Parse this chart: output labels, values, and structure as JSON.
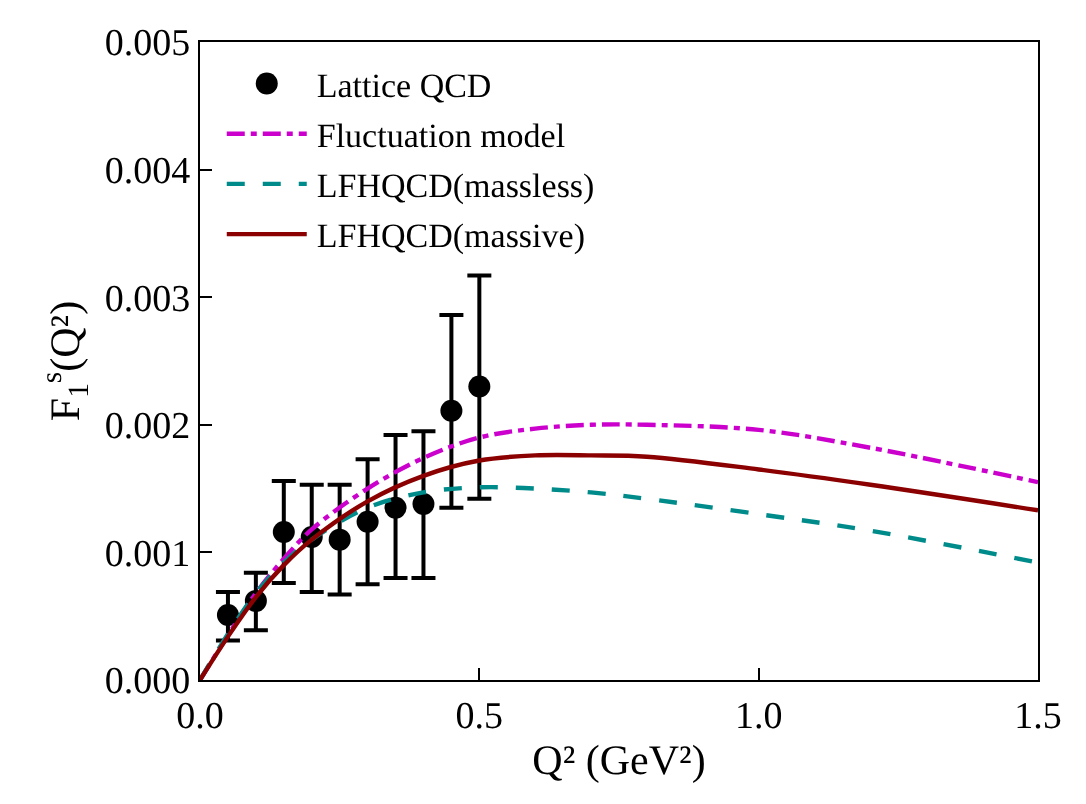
{
  "chart_data": {
    "type": "line",
    "xlabel": "Q² (GeV²)",
    "ylabel": "F$_{1}$$^{s}$(Q²)",
    "xlim": [
      0,
      1.5
    ],
    "xticks": [
      {
        "value": 0,
        "label": "0.0"
      },
      0.5,
      {
        "value": 1.0,
        "label": "1.0"
      },
      1.5
    ],
    "ylim": [
      0,
      0.005
    ],
    "yticks": [
      {
        "value": 0,
        "label": "0.000"
      },
      0.001,
      0.002,
      0.003,
      0.004,
      0.005
    ],
    "legend": "top left",
    "series": [
      {
        "name": "Lattice QCD",
        "type": "scatter",
        "color": "#000000",
        "marker": "circle",
        "x": [
          0.05,
          0.1,
          0.15,
          0.2,
          0.25,
          0.3,
          0.35,
          0.4,
          0.45,
          0.5
        ],
        "values": [
          0.00051,
          0.00062,
          0.00116,
          0.00112,
          0.0011,
          0.00124,
          0.00135,
          0.00138,
          0.00211,
          0.0023
        ],
        "errors": [
          [
            0.00031,
            0.00069
          ],
          [
            0.00039,
            0.00084
          ],
          [
            0.00076,
            0.00156
          ],
          [
            0.00069,
            0.00153
          ],
          [
            0.00067,
            0.00153
          ],
          [
            0.00075,
            0.00173
          ],
          [
            0.0008,
            0.00192
          ],
          [
            0.0008,
            0.00195
          ],
          [
            0.00135,
            0.00286
          ],
          [
            0.00142,
            0.00317
          ]
        ]
      },
      {
        "name": "Fluctuation model",
        "color": "#cc00cc",
        "line_style": "dashdot",
        "x": [
          0,
          0.05,
          0.1,
          0.15,
          0.2,
          0.3,
          0.4,
          0.5,
          0.6,
          0.7,
          0.8,
          1.0,
          1.2,
          1.5
        ],
        "values": [
          0,
          0.00035,
          0.00068,
          0.00095,
          0.00118,
          0.0015,
          0.00174,
          0.0019,
          0.00197,
          0.002,
          0.002,
          0.00196,
          0.00182,
          0.00155
        ]
      },
      {
        "name": "LFHQCD(massless)",
        "color": "#008b8b",
        "line_style": "dashed",
        "x": [
          0,
          0.05,
          0.1,
          0.15,
          0.2,
          0.3,
          0.4,
          0.5,
          0.6,
          0.7,
          0.8,
          1.0,
          1.2,
          1.5
        ],
        "values": [
          0,
          0.00036,
          0.00068,
          0.00092,
          0.0011,
          0.00135,
          0.00147,
          0.00151,
          0.0015,
          0.00147,
          0.00142,
          0.0013,
          0.00117,
          0.00092
        ]
      },
      {
        "name": "LFHQCD(massive)",
        "color": "#8b0000",
        "line_style": "solid",
        "x": [
          0,
          0.05,
          0.1,
          0.15,
          0.2,
          0.3,
          0.4,
          0.5,
          0.6,
          0.7,
          0.8,
          1.0,
          1.2,
          1.5
        ],
        "values": [
          0,
          0.00034,
          0.00065,
          0.0009,
          0.0011,
          0.0014,
          0.0016,
          0.00172,
          0.00176,
          0.00176,
          0.00175,
          0.00165,
          0.00153,
          0.00133
        ]
      }
    ]
  }
}
